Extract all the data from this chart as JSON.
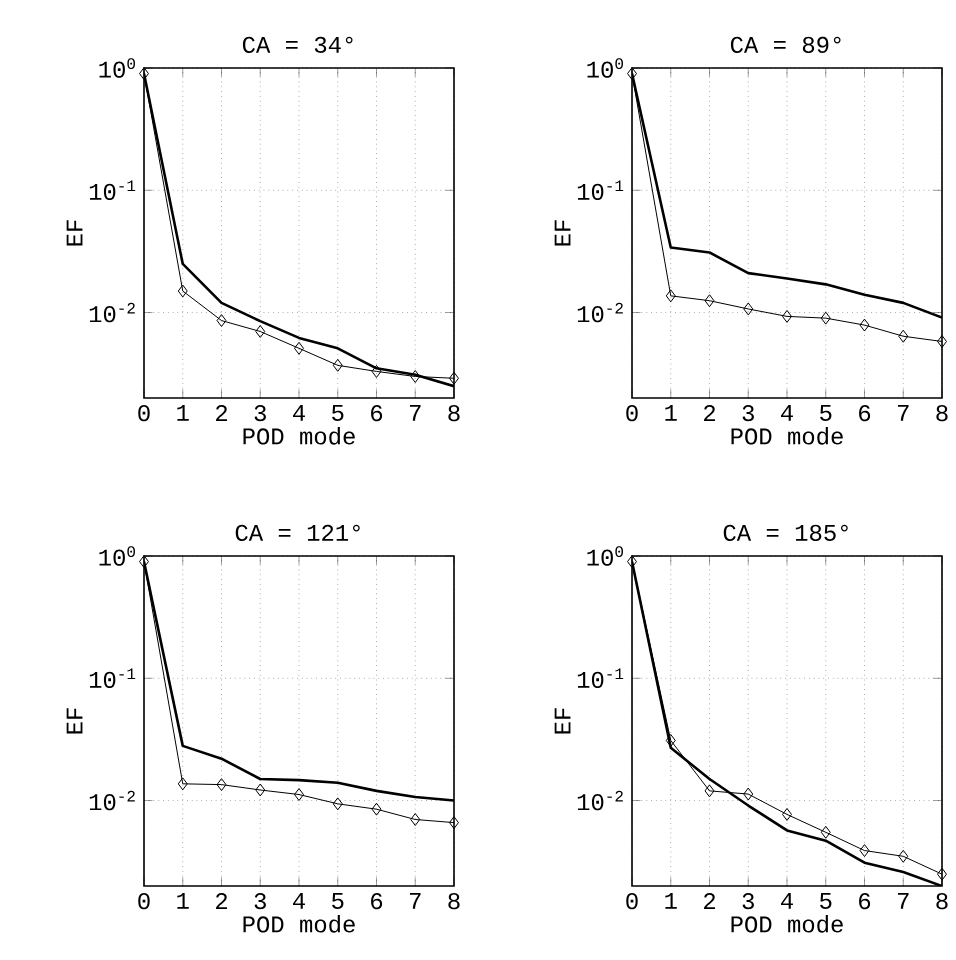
{
  "chart_data": [
    {
      "type": "line",
      "title": "CA = 34°",
      "xlabel": "POD mode",
      "ylabel": "EF",
      "x": [
        0,
        1,
        2,
        3,
        4,
        5,
        6,
        7,
        8
      ],
      "xlim": [
        0,
        8
      ],
      "xticks": [
        0,
        1,
        2,
        3,
        4,
        5,
        6,
        7,
        8
      ],
      "ylim": [
        0.002,
        1
      ],
      "yticks": [
        {
          "value": 1,
          "label": "10$^{0}$"
        },
        {
          "value": 0.1,
          "label": "10$^{-1}$"
        },
        {
          "value": 0.01,
          "label": "10$^{-2}$"
        }
      ],
      "log": "y",
      "grid": true,
      "series": [
        {
          "color": "#000000",
          "marker": "none",
          "values": [
            0.9,
            0.025,
            0.012,
            0.0085,
            0.0062,
            0.0051,
            0.0035,
            0.0031,
            0.0025
          ]
        },
        {
          "color": "#000000",
          "marker": "diamond",
          "values": [
            0.9,
            0.015,
            0.0086,
            0.007,
            0.0051,
            0.0037,
            0.0033,
            0.003,
            0.0029
          ]
        }
      ]
    },
    {
      "type": "line",
      "title": "CA = 89°",
      "xlabel": "POD mode",
      "ylabel": "EF",
      "x": [
        0,
        1,
        2,
        3,
        4,
        5,
        6,
        7,
        8
      ],
      "xlim": [
        0,
        8
      ],
      "xticks": [
        0,
        1,
        2,
        3,
        4,
        5,
        6,
        7,
        8
      ],
      "ylim": [
        0.002,
        1
      ],
      "yticks": [
        {
          "value": 1,
          "label": "10$^{0}$"
        },
        {
          "value": 0.1,
          "label": "10$^{-1}$"
        },
        {
          "value": 0.01,
          "label": "10$^{-2}$"
        }
      ],
      "log": "y",
      "grid": true,
      "series": [
        {
          "color": "#000000",
          "marker": "none",
          "values": [
            0.9,
            0.034,
            0.031,
            0.021,
            0.019,
            0.017,
            0.014,
            0.012,
            0.0091
          ]
        },
        {
          "color": "#000000",
          "marker": "diamond",
          "values": [
            0.9,
            0.0137,
            0.0125,
            0.0107,
            0.0093,
            0.009,
            0.0079,
            0.0064,
            0.0058
          ]
        }
      ]
    },
    {
      "type": "line",
      "title": "CA = 121°",
      "xlabel": "POD mode",
      "ylabel": "EF",
      "x": [
        0,
        1,
        2,
        3,
        4,
        5,
        6,
        7,
        8
      ],
      "xlim": [
        0,
        8
      ],
      "xticks": [
        0,
        1,
        2,
        3,
        4,
        5,
        6,
        7,
        8
      ],
      "ylim": [
        0.002,
        1
      ],
      "yticks": [
        {
          "value": 1,
          "label": "10$^{0}$"
        },
        {
          "value": 0.1,
          "label": "10$^{-1}$"
        },
        {
          "value": 0.01,
          "label": "10$^{-2}$"
        }
      ],
      "log": "y",
      "grid": true,
      "series": [
        {
          "color": "#000000",
          "marker": "none",
          "values": [
            0.9,
            0.028,
            0.022,
            0.015,
            0.0147,
            0.014,
            0.012,
            0.0107,
            0.01
          ]
        },
        {
          "color": "#000000",
          "marker": "diamond",
          "values": [
            0.9,
            0.0137,
            0.0135,
            0.0122,
            0.0112,
            0.0094,
            0.0085,
            0.007,
            0.0066
          ]
        }
      ]
    },
    {
      "type": "line",
      "title": "CA = 185°",
      "xlabel": "POD mode",
      "ylabel": "EF",
      "x": [
        0,
        1,
        2,
        3,
        4,
        5,
        6,
        7,
        8
      ],
      "xlim": [
        0,
        8
      ],
      "xticks": [
        0,
        1,
        2,
        3,
        4,
        5,
        6,
        7,
        8
      ],
      "ylim": [
        0.002,
        1
      ],
      "yticks": [
        {
          "value": 1,
          "label": "10$^{0}$"
        },
        {
          "value": 0.1,
          "label": "10$^{-1}$"
        },
        {
          "value": 0.01,
          "label": "10$^{-2}$"
        }
      ],
      "log": "y",
      "grid": true,
      "series": [
        {
          "color": "#000000",
          "marker": "none",
          "values": [
            0.9,
            0.027,
            0.015,
            0.0091,
            0.0057,
            0.0047,
            0.0031,
            0.0026,
            0.002
          ]
        },
        {
          "color": "#000000",
          "marker": "diamond",
          "values": [
            0.9,
            0.031,
            0.012,
            0.0113,
            0.0077,
            0.0055,
            0.0039,
            0.0035,
            0.0025
          ]
        }
      ]
    }
  ]
}
